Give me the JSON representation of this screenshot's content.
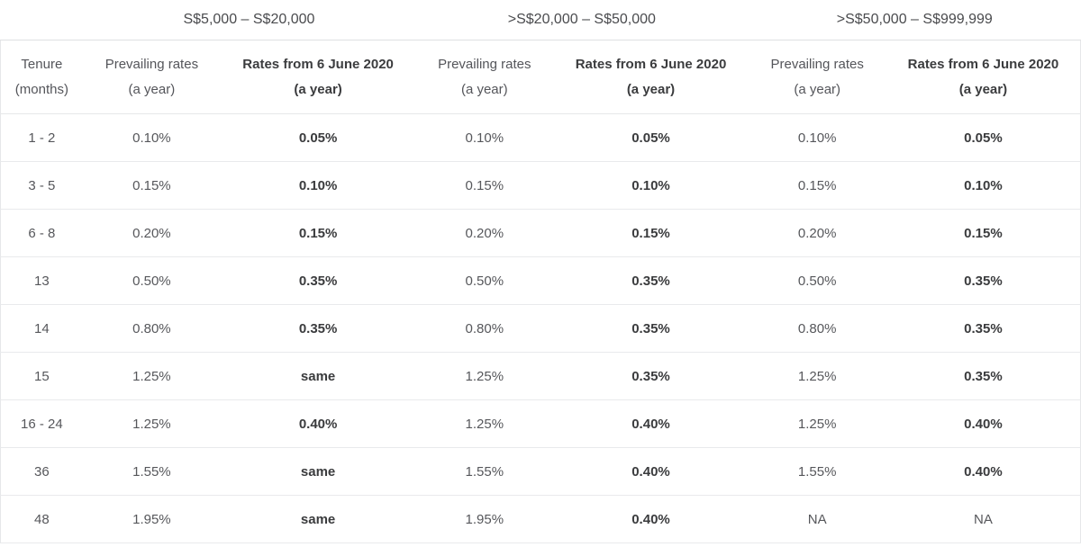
{
  "table": {
    "bands": [
      "S$5,000 – S$20,000",
      ">S$20,000 – S$50,000",
      ">S$50,000 – S$999,999"
    ],
    "columns": {
      "tenure": {
        "line1": "Tenure",
        "line2": "(months)"
      },
      "prevailing": {
        "line1": "Prevailing rates",
        "line2": "(a year)"
      },
      "rates_new": {
        "line1": "Rates from 6 June 2020",
        "line2": "(a year)"
      }
    },
    "rows": [
      {
        "cells": [
          "1 - 2",
          "0.10%",
          "0.05%",
          "0.10%",
          "0.05%",
          "0.10%",
          "0.05%"
        ]
      },
      {
        "cells": [
          "3 - 5",
          "0.15%",
          "0.10%",
          "0.15%",
          "0.10%",
          "0.15%",
          "0.10%"
        ]
      },
      {
        "cells": [
          "6 - 8",
          "0.20%",
          "0.15%",
          "0.20%",
          "0.15%",
          "0.20%",
          "0.15%"
        ]
      },
      {
        "cells": [
          "13",
          "0.50%",
          "0.35%",
          "0.50%",
          "0.35%",
          "0.50%",
          "0.35%"
        ]
      },
      {
        "cells": [
          "14",
          "0.80%",
          "0.35%",
          "0.80%",
          "0.35%",
          "0.80%",
          "0.35%"
        ]
      },
      {
        "cells": [
          "15",
          "1.25%",
          "same",
          "1.25%",
          "0.35%",
          "1.25%",
          "0.35%"
        ]
      },
      {
        "cells": [
          "16 - 24",
          "1.25%",
          "0.40%",
          "1.25%",
          "0.40%",
          "1.25%",
          "0.40%"
        ]
      },
      {
        "cells": [
          "36",
          "1.55%",
          "same",
          "1.55%",
          "0.40%",
          "1.55%",
          "0.40%"
        ]
      },
      {
        "cells": [
          "48",
          "1.95%",
          "same",
          "1.95%",
          "0.40%",
          "NA",
          "NA"
        ]
      }
    ]
  },
  "colors": {
    "background": "#ffffff",
    "text_regular": "#56575b",
    "text_bold": "#3a3b3d",
    "band_text": "#4a4b4e",
    "border": "#e6e7e9"
  }
}
